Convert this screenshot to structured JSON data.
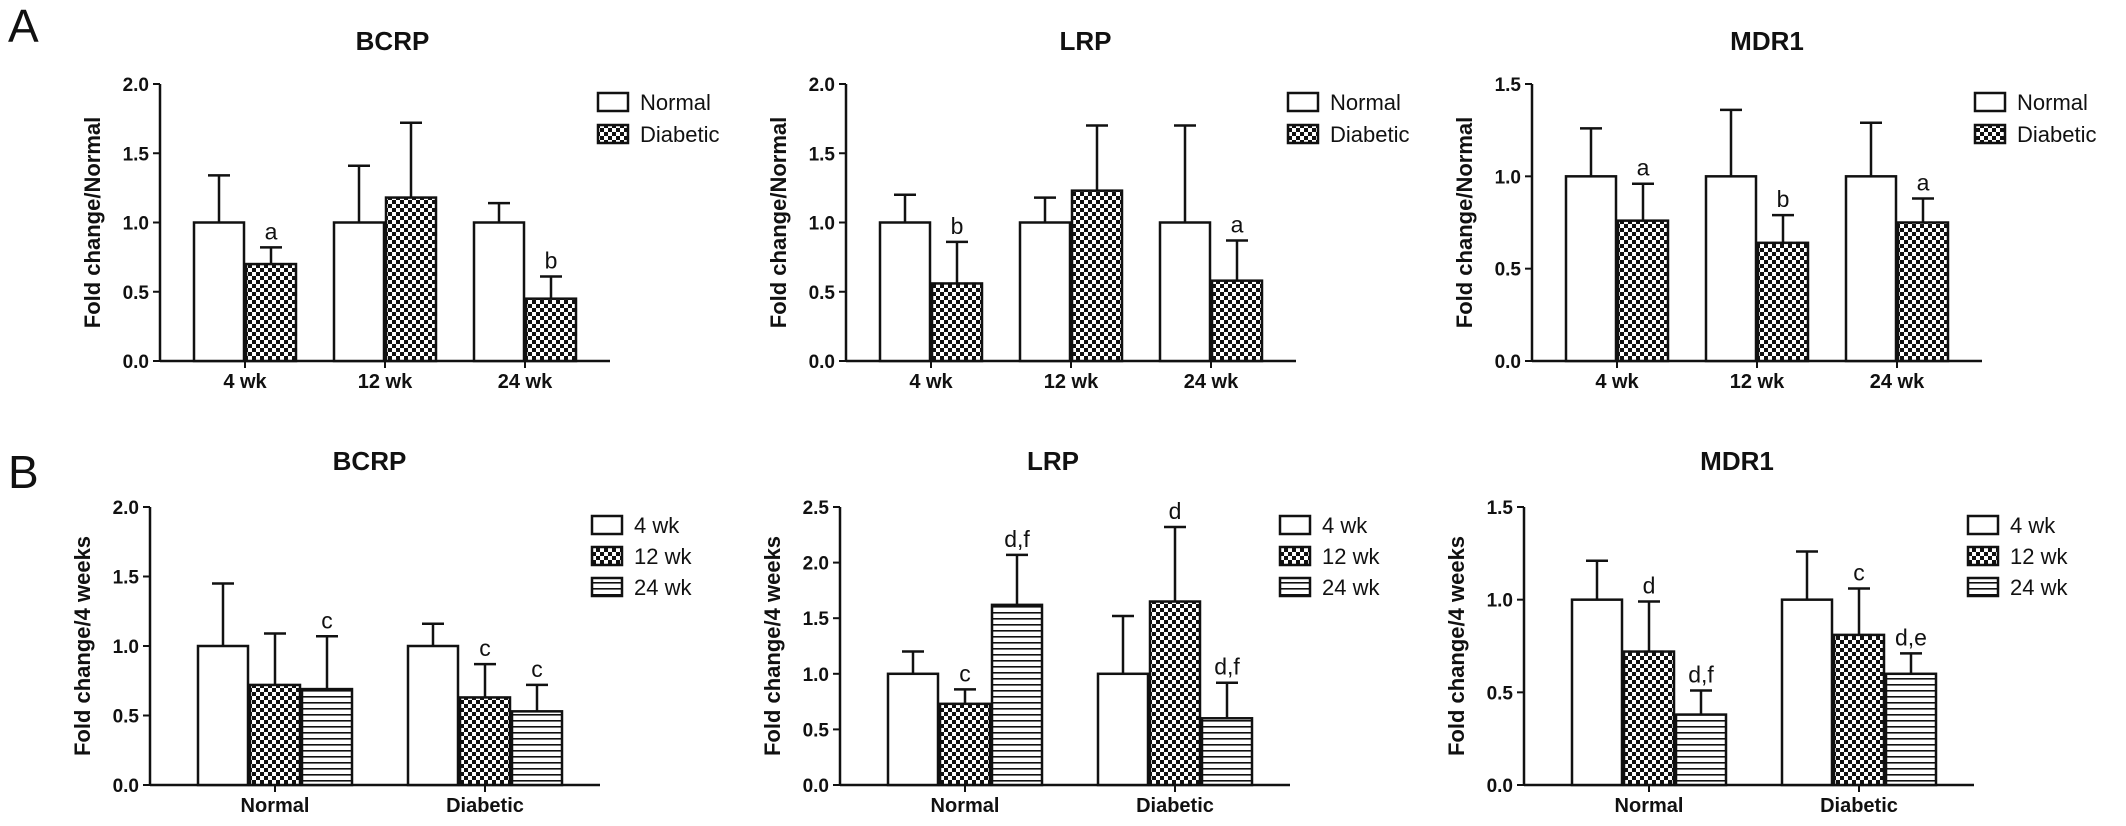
{
  "panel_labels": [
    "A",
    "B"
  ],
  "chart_data": [
    {
      "type": "bar",
      "title": "BCRP",
      "ylabel": "Fold change/Normal",
      "ylim": [
        0,
        2.0
      ],
      "yticks": [
        "0.0",
        "0.5",
        "1.0",
        "1.5",
        "2.0"
      ],
      "categories": [
        "4 wk",
        "12 wk",
        "24 wk"
      ],
      "series": [
        {
          "name": "Normal",
          "values": [
            1.0,
            1.0,
            1.0
          ],
          "errors": [
            0.34,
            0.41,
            0.14
          ],
          "pattern": "white"
        },
        {
          "name": "Diabetic",
          "values": [
            0.7,
            1.18,
            0.45
          ],
          "errors": [
            0.12,
            0.54,
            0.16
          ],
          "pattern": "check"
        }
      ],
      "annotations": [
        {
          "category": 0,
          "series": 1,
          "text": "a"
        },
        {
          "category": 2,
          "series": 1,
          "text": "b"
        }
      ],
      "legend_position": "right"
    },
    {
      "type": "bar",
      "title": "LRP",
      "ylabel": "Fold change/Normal",
      "ylim": [
        0,
        2.0
      ],
      "yticks": [
        "0.0",
        "0.5",
        "1.0",
        "1.5",
        "2.0"
      ],
      "categories": [
        "4 wk",
        "12 wk",
        "24 wk"
      ],
      "series": [
        {
          "name": "Normal",
          "values": [
            1.0,
            1.0,
            1.0
          ],
          "errors": [
            0.2,
            0.18,
            0.7
          ],
          "pattern": "white"
        },
        {
          "name": "Diabetic",
          "values": [
            0.56,
            1.23,
            0.58
          ],
          "errors": [
            0.3,
            0.47,
            0.29
          ],
          "pattern": "check"
        }
      ],
      "annotations": [
        {
          "category": 0,
          "series": 1,
          "text": "b"
        },
        {
          "category": 2,
          "series": 1,
          "text": "a"
        }
      ],
      "legend_position": "right"
    },
    {
      "type": "bar",
      "title": "MDR1",
      "ylabel": "Fold change/Normal",
      "ylim": [
        0,
        1.5
      ],
      "yticks": [
        "0.0",
        "0.5",
        "1.0",
        "1.5"
      ],
      "categories": [
        "4 wk",
        "12 wk",
        "24 wk"
      ],
      "series": [
        {
          "name": "Normal",
          "values": [
            1.0,
            1.0,
            1.0
          ],
          "errors": [
            0.26,
            0.36,
            0.29
          ],
          "pattern": "white"
        },
        {
          "name": "Diabetic",
          "values": [
            0.76,
            0.64,
            0.75
          ],
          "errors": [
            0.2,
            0.15,
            0.13
          ],
          "pattern": "check"
        }
      ],
      "annotations": [
        {
          "category": 0,
          "series": 1,
          "text": "a"
        },
        {
          "category": 1,
          "series": 1,
          "text": "b"
        },
        {
          "category": 2,
          "series": 1,
          "text": "a"
        }
      ],
      "legend_position": "right"
    },
    {
      "type": "bar",
      "title": "BCRP",
      "ylabel": "Fold change/4 weeks",
      "ylim": [
        0,
        2.0
      ],
      "yticks": [
        "0.0",
        "0.5",
        "1.0",
        "1.5",
        "2.0"
      ],
      "categories": [
        "Normal",
        "Diabetic"
      ],
      "series": [
        {
          "name": "4 wk",
          "values": [
            1.0,
            1.0
          ],
          "errors": [
            0.45,
            0.16
          ],
          "pattern": "white"
        },
        {
          "name": "12 wk",
          "values": [
            0.72,
            0.63
          ],
          "errors": [
            0.37,
            0.24
          ],
          "pattern": "check"
        },
        {
          "name": "24 wk",
          "values": [
            0.69,
            0.53
          ],
          "errors": [
            0.38,
            0.19
          ],
          "pattern": "hstripe"
        }
      ],
      "annotations": [
        {
          "category": 0,
          "series": 2,
          "text": "c"
        },
        {
          "category": 1,
          "series": 1,
          "text": "c"
        },
        {
          "category": 1,
          "series": 2,
          "text": "c"
        }
      ],
      "legend_position": "right"
    },
    {
      "type": "bar",
      "title": "LRP",
      "ylabel": "Fold change/4 weeks",
      "ylim": [
        0,
        2.5
      ],
      "yticks": [
        "0.0",
        "0.5",
        "1.0",
        "1.5",
        "2.0",
        "2.5"
      ],
      "categories": [
        "Normal",
        "Diabetic"
      ],
      "series": [
        {
          "name": "4 wk",
          "values": [
            1.0,
            1.0
          ],
          "errors": [
            0.2,
            0.52
          ],
          "pattern": "white"
        },
        {
          "name": "12 wk",
          "values": [
            0.73,
            1.65
          ],
          "errors": [
            0.13,
            0.67
          ],
          "pattern": "check"
        },
        {
          "name": "24 wk",
          "values": [
            1.62,
            0.6
          ],
          "errors": [
            0.45,
            0.32
          ],
          "pattern": "hstripe"
        }
      ],
      "annotations": [
        {
          "category": 0,
          "series": 1,
          "text": "c"
        },
        {
          "category": 0,
          "series": 2,
          "text": "d,f"
        },
        {
          "category": 1,
          "series": 1,
          "text": "d"
        },
        {
          "category": 1,
          "series": 2,
          "text": "d,f"
        }
      ],
      "legend_position": "right"
    },
    {
      "type": "bar",
      "title": "MDR1",
      "ylabel": "Fold change/4 weeks",
      "ylim": [
        0,
        1.5
      ],
      "yticks": [
        "0.0",
        "0.5",
        "1.0",
        "1.5"
      ],
      "categories": [
        "Normal",
        "Diabetic"
      ],
      "series": [
        {
          "name": "4 wk",
          "values": [
            1.0,
            1.0
          ],
          "errors": [
            0.21,
            0.26
          ],
          "pattern": "white"
        },
        {
          "name": "12 wk",
          "values": [
            0.72,
            0.81
          ],
          "errors": [
            0.27,
            0.25
          ],
          "pattern": "check"
        },
        {
          "name": "24 wk",
          "values": [
            0.38,
            0.6
          ],
          "errors": [
            0.13,
            0.11
          ],
          "pattern": "hstripe"
        }
      ],
      "annotations": [
        {
          "category": 0,
          "series": 1,
          "text": "d"
        },
        {
          "category": 0,
          "series": 2,
          "text": "d,f"
        },
        {
          "category": 1,
          "series": 1,
          "text": "c"
        },
        {
          "category": 1,
          "series": 2,
          "text": "d,e"
        }
      ],
      "legend_position": "right"
    }
  ]
}
